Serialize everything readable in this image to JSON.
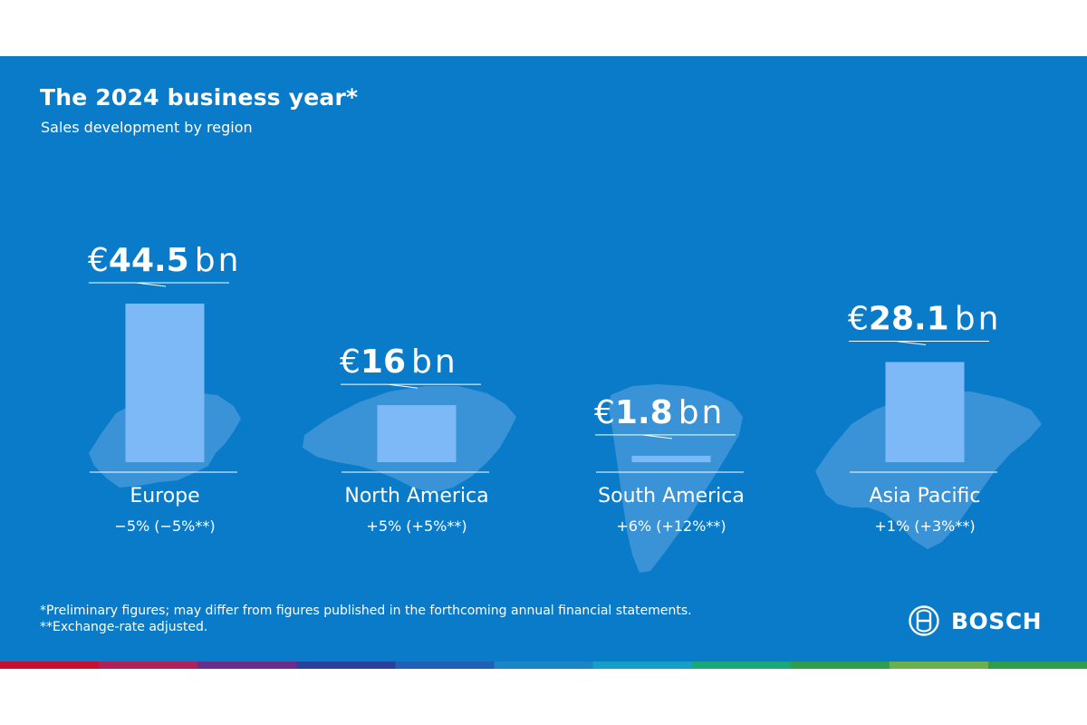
{
  "header": {
    "title": "The 2024 business year*",
    "subtitle": "Sales development by region"
  },
  "chart_data": {
    "type": "bar",
    "categories": [
      "Europe",
      "North America",
      "South America",
      "Asia Pacific"
    ],
    "values": [
      44.5,
      16,
      1.8,
      28.1
    ],
    "value_prefix": "€",
    "value_unit": "bn",
    "value_labels": [
      "44.5",
      "16",
      "1.8",
      "28.1"
    ],
    "changes": [
      "−5% (−5%**)",
      "+5% (+5%**)",
      "+6% (+12%**)",
      "+1% (+3%**)"
    ],
    "ylim": [
      0,
      44.5
    ],
    "grid": false,
    "legend": "none",
    "bar_color": "#7db9f7"
  },
  "footnotes": {
    "line1": "*Preliminary figures; may differ from figures published in the forthcoming annual financial statements.",
    "line2": "**Exchange-rate adjusted."
  },
  "logo": {
    "wordmark": "BOSCH",
    "icon": "bosch-armature-icon"
  },
  "colors": {
    "background": "#0a7bc8",
    "bar": "#7db9f7",
    "text": "#ffffff",
    "map": "#3a93d6",
    "brand_stripe": [
      "#c8102e",
      "#b0205a",
      "#6b2d8c",
      "#2a3f9d",
      "#1f5fb5",
      "#1a86c7",
      "#16a0c8",
      "#1aa87a",
      "#2e9e4e",
      "#6bb04a",
      "#2e9e4e"
    ]
  }
}
